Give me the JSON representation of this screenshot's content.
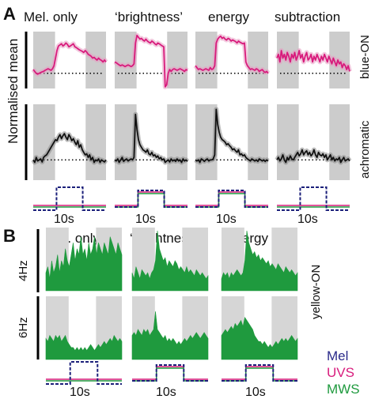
{
  "panels": {
    "A": {
      "letter": "A",
      "columns": [
        "Mel. only",
        "‘brightness’",
        "energy",
        "subtraction"
      ],
      "ylabel": "Normalised mean",
      "row_labels": [
        "blue-ON",
        "achromatic"
      ],
      "time_label": "10s",
      "colors": {
        "blue_on": "#d81b7c",
        "achromatic": "#111111",
        "shade": "#cccccc",
        "band_magenta": "#e89cc2",
        "band_black": "#888888"
      }
    },
    "B": {
      "letter": "B",
      "columns": [
        "Mel. only",
        "‘brightness’",
        "energy"
      ],
      "row_labels": [
        "4Hz",
        "6Hz"
      ],
      "side_label": "yellow-ON",
      "time_label": "10s",
      "colors": {
        "fill": "#1f9a3e",
        "shade": "#d6d6d6"
      }
    }
  },
  "legend": {
    "items": [
      {
        "label": "Mel",
        "color": "#2a2a8a"
      },
      {
        "label": "UVS",
        "color": "#d81b7c"
      },
      {
        "label": "MWS",
        "color": "#1f9a3e"
      }
    ]
  },
  "chart_data": [
    {
      "type": "line",
      "panel": "A",
      "row": "blue-ON",
      "x_units": "time bins",
      "stimulus_window": [
        40,
        80
      ],
      "baseline": 1,
      "series": [
        {
          "column": "Mel. only",
          "values": [
            1.1,
            1.05,
            1.0,
            0.98,
            1.0,
            1.02,
            1.04,
            1.05,
            1.08,
            1.1,
            1.12,
            1.1,
            1.08,
            1.12,
            1.2,
            1.4,
            1.6,
            1.72,
            1.75,
            1.78,
            1.72,
            1.75,
            1.8,
            1.76,
            1.7,
            1.72,
            1.75,
            1.78,
            1.7,
            1.68,
            1.65,
            1.62,
            1.6,
            1.58,
            1.55,
            1.6,
            1.56,
            1.5,
            1.48,
            1.45,
            1.4,
            1.42,
            1.38,
            1.35,
            1.4,
            1.36,
            1.34,
            1.3,
            1.35,
            1.3
          ]
        },
        {
          "column": "‘brightness’",
          "values": [
            1.3,
            1.28,
            1.25,
            1.22,
            1.2,
            1.22,
            1.2,
            1.18,
            1.2,
            1.22,
            1.2,
            1.18,
            1.2,
            1.25,
            1.8,
            2.0,
            1.95,
            1.9,
            1.92,
            1.88,
            1.85,
            1.9,
            1.85,
            1.82,
            1.8,
            1.85,
            1.82,
            1.78,
            1.75,
            1.8,
            1.78,
            1.75,
            1.72,
            1.7,
            0.6,
            0.7,
            1.0,
            1.1,
            1.05,
            1.1,
            1.12,
            1.1,
            1.08,
            1.1,
            1.12,
            1.1,
            1.08,
            1.05,
            1.1,
            1.08
          ]
        },
        {
          "column": "energy",
          "values": [
            1.2,
            1.15,
            1.1,
            1.12,
            1.1,
            1.08,
            1.1,
            1.12,
            1.1,
            1.08,
            1.15,
            1.1,
            1.12,
            1.2,
            1.8,
            1.9,
            1.95,
            1.98,
            1.92,
            1.95,
            1.9,
            1.88,
            1.92,
            1.9,
            1.85,
            1.88,
            1.86,
            1.84,
            1.8,
            1.85,
            1.82,
            1.8,
            1.78,
            1.8,
            1.3,
            1.2,
            1.15,
            1.1,
            1.12,
            1.1,
            1.08,
            1.12,
            1.1,
            1.05,
            1.08,
            1.1,
            1.05,
            1.02,
            1.05,
            1.0
          ]
        },
        {
          "column": "subtraction",
          "values": [
            1.4,
            1.5,
            1.3,
            1.6,
            1.4,
            1.5,
            1.35,
            1.55,
            1.45,
            1.3,
            1.5,
            1.4,
            1.55,
            1.35,
            1.45,
            1.6,
            1.4,
            1.5,
            1.3,
            1.45,
            1.55,
            1.35,
            1.4,
            1.5,
            1.3,
            1.45,
            1.35,
            1.5,
            1.4,
            1.3,
            1.45,
            1.35,
            1.5,
            1.4,
            1.3,
            1.45,
            1.35,
            1.25,
            1.4,
            1.3,
            1.2,
            1.35,
            1.25,
            1.3,
            1.15,
            1.25,
            1.2,
            1.1,
            1.2,
            1.05
          ]
        }
      ]
    },
    {
      "type": "line",
      "panel": "A",
      "row": "achromatic",
      "x_units": "time bins",
      "stimulus_window": [
        40,
        80
      ],
      "baseline": 1,
      "series": [
        {
          "column": "Mel. only",
          "values": [
            1.0,
            0.95,
            1.05,
            0.98,
            1.0,
            1.02,
            0.96,
            1.05,
            1.08,
            1.1,
            1.15,
            1.2,
            1.25,
            1.3,
            1.35,
            1.4,
            1.38,
            1.45,
            1.5,
            1.42,
            1.48,
            1.52,
            1.45,
            1.4,
            1.5,
            1.45,
            1.38,
            1.42,
            1.35,
            1.3,
            1.38,
            1.25,
            1.3,
            1.2,
            1.15,
            1.1,
            1.12,
            1.05,
            1.1,
            1.0,
            1.05,
            0.95,
            1.0,
            0.98,
            1.02,
            0.95,
            1.0,
            0.98,
            0.96,
            1.0
          ]
        },
        {
          "column": "‘brightness’",
          "values": [
            1.0,
            0.98,
            1.02,
            0.95,
            1.0,
            1.05,
            0.97,
            1.0,
            1.02,
            0.98,
            1.0,
            1.02,
            1.0,
            1.05,
            1.9,
            1.6,
            1.4,
            1.3,
            1.25,
            1.2,
            1.18,
            1.15,
            1.2,
            1.12,
            1.1,
            1.15,
            1.08,
            1.1,
            1.05,
            1.08,
            1.02,
            1.05,
            1.0,
            1.02,
            0.95,
            0.98,
            1.0,
            0.96,
            1.02,
            0.98,
            1.0,
            0.97,
            1.02,
            0.98,
            1.0,
            0.95,
            1.02,
            0.98,
            1.0,
            0.97
          ]
        },
        {
          "column": "energy",
          "values": [
            1.0,
            0.98,
            1.0,
            0.95,
            1.02,
            1.0,
            0.97,
            1.0,
            1.02,
            0.98,
            1.0,
            1.0,
            1.02,
            1.1,
            2.0,
            1.7,
            1.55,
            1.45,
            1.4,
            1.38,
            1.35,
            1.3,
            1.32,
            1.28,
            1.25,
            1.2,
            1.22,
            1.18,
            1.15,
            1.2,
            1.1,
            1.12,
            1.08,
            1.1,
            1.05,
            1.02,
            1.0,
            0.98,
            1.02,
            1.0,
            0.98,
            1.0,
            0.97,
            1.02,
            1.0,
            0.98,
            1.0,
            0.97,
            1.0,
            0.98
          ]
        },
        {
          "column": "subtraction",
          "values": [
            1.0,
            1.05,
            0.98,
            1.02,
            1.1,
            1.0,
            0.95,
            1.05,
            1.0,
            1.08,
            1.02,
            1.0,
            1.05,
            1.1,
            1.15,
            1.08,
            1.12,
            1.2,
            1.1,
            1.15,
            1.18,
            1.1,
            1.15,
            1.08,
            1.12,
            1.2,
            1.1,
            1.05,
            1.15,
            1.1,
            1.08,
            1.12,
            1.05,
            1.1,
            1.0,
            1.05,
            1.1,
            1.0,
            1.05,
            0.98,
            1.02,
            1.0,
            1.05,
            0.95,
            1.0,
            1.05,
            0.98,
            1.0,
            1.02,
            0.98
          ]
        }
      ]
    },
    {
      "type": "area",
      "panel": "B",
      "row": "4Hz",
      "x_units": "time bins",
      "stimulus_window": [
        30,
        65
      ],
      "series": [
        {
          "column": "Mel. only",
          "values": [
            0.3,
            0.4,
            0.2,
            0.5,
            0.3,
            0.4,
            0.6,
            0.3,
            0.5,
            0.4,
            0.7,
            0.5,
            0.4,
            0.6,
            0.8,
            0.5,
            0.7,
            0.6,
            0.9,
            0.6,
            0.7,
            0.5,
            0.8,
            0.6,
            0.7,
            0.9,
            0.6,
            0.8,
            0.7,
            0.6,
            0.8,
            0.7,
            0.6,
            0.9,
            0.8,
            0.7,
            0.6,
            0.8,
            0.7,
            0.6
          ]
        },
        {
          "column": "‘brightness’",
          "values": [
            0.3,
            0.2,
            0.4,
            0.3,
            0.2,
            0.35,
            0.3,
            0.25,
            0.3,
            0.2,
            0.3,
            0.35,
            0.5,
            1.0,
            0.7,
            0.6,
            0.5,
            0.55,
            0.4,
            0.5,
            0.45,
            0.4,
            0.5,
            0.45,
            0.35,
            0.4,
            0.35,
            0.3,
            0.4,
            0.3,
            0.35,
            0.3,
            0.25,
            0.35,
            0.3,
            0.25,
            0.3,
            0.25,
            0.2,
            0.25
          ]
        },
        {
          "column": "energy",
          "values": [
            0.2,
            0.3,
            0.25,
            0.3,
            0.2,
            0.3,
            0.25,
            0.3,
            0.35,
            0.3,
            0.25,
            0.3,
            0.5,
            1.0,
            0.8,
            0.7,
            0.6,
            0.65,
            0.55,
            0.6,
            0.5,
            0.55,
            0.5,
            0.45,
            0.5,
            0.4,
            0.45,
            0.4,
            0.35,
            0.45,
            0.4,
            0.35,
            0.3,
            0.4,
            0.35,
            0.3,
            0.35,
            0.3,
            0.25,
            0.3
          ]
        }
      ]
    },
    {
      "type": "area",
      "panel": "B",
      "row": "6Hz",
      "x_units": "time bins",
      "stimulus_window": [
        30,
        65
      ],
      "series": [
        {
          "column": "Mel. only",
          "values": [
            0.35,
            0.3,
            0.4,
            0.35,
            0.3,
            0.4,
            0.35,
            0.4,
            0.3,
            0.35,
            0.4,
            0.3,
            0.25,
            0.2,
            0.2,
            0.15,
            0.2,
            0.15,
            0.2,
            0.15,
            0.2,
            0.15,
            0.2,
            0.25,
            0.2,
            0.15,
            0.2,
            0.25,
            0.2,
            0.25,
            0.3,
            0.25,
            0.3,
            0.35,
            0.3,
            0.4,
            0.35,
            0.3,
            0.35,
            0.3
          ]
        },
        {
          "column": "‘brightness’",
          "values": [
            0.4,
            0.45,
            0.4,
            0.5,
            0.45,
            0.4,
            0.5,
            0.45,
            0.5,
            0.4,
            0.45,
            0.5,
            0.8,
            0.5,
            0.45,
            0.4,
            0.35,
            0.4,
            0.3,
            0.35,
            0.3,
            0.35,
            0.3,
            0.25,
            0.3,
            0.25,
            0.3,
            0.35,
            0.3,
            0.35,
            0.4,
            0.35,
            0.4,
            0.45,
            0.4,
            0.35,
            0.4,
            0.45,
            0.4,
            0.35
          ]
        },
        {
          "column": "energy",
          "values": [
            0.4,
            0.45,
            0.5,
            0.45,
            0.5,
            0.55,
            0.5,
            0.6,
            0.55,
            0.6,
            0.65,
            0.55,
            0.7,
            0.65,
            0.6,
            0.55,
            0.5,
            0.4,
            0.35,
            0.3,
            0.3,
            0.25,
            0.3,
            0.25,
            0.2,
            0.25,
            0.2,
            0.25,
            0.3,
            0.25,
            0.3,
            0.35,
            0.3,
            0.35,
            0.3,
            0.35,
            0.4,
            0.35,
            0.3,
            0.35
          ]
        }
      ]
    }
  ]
}
